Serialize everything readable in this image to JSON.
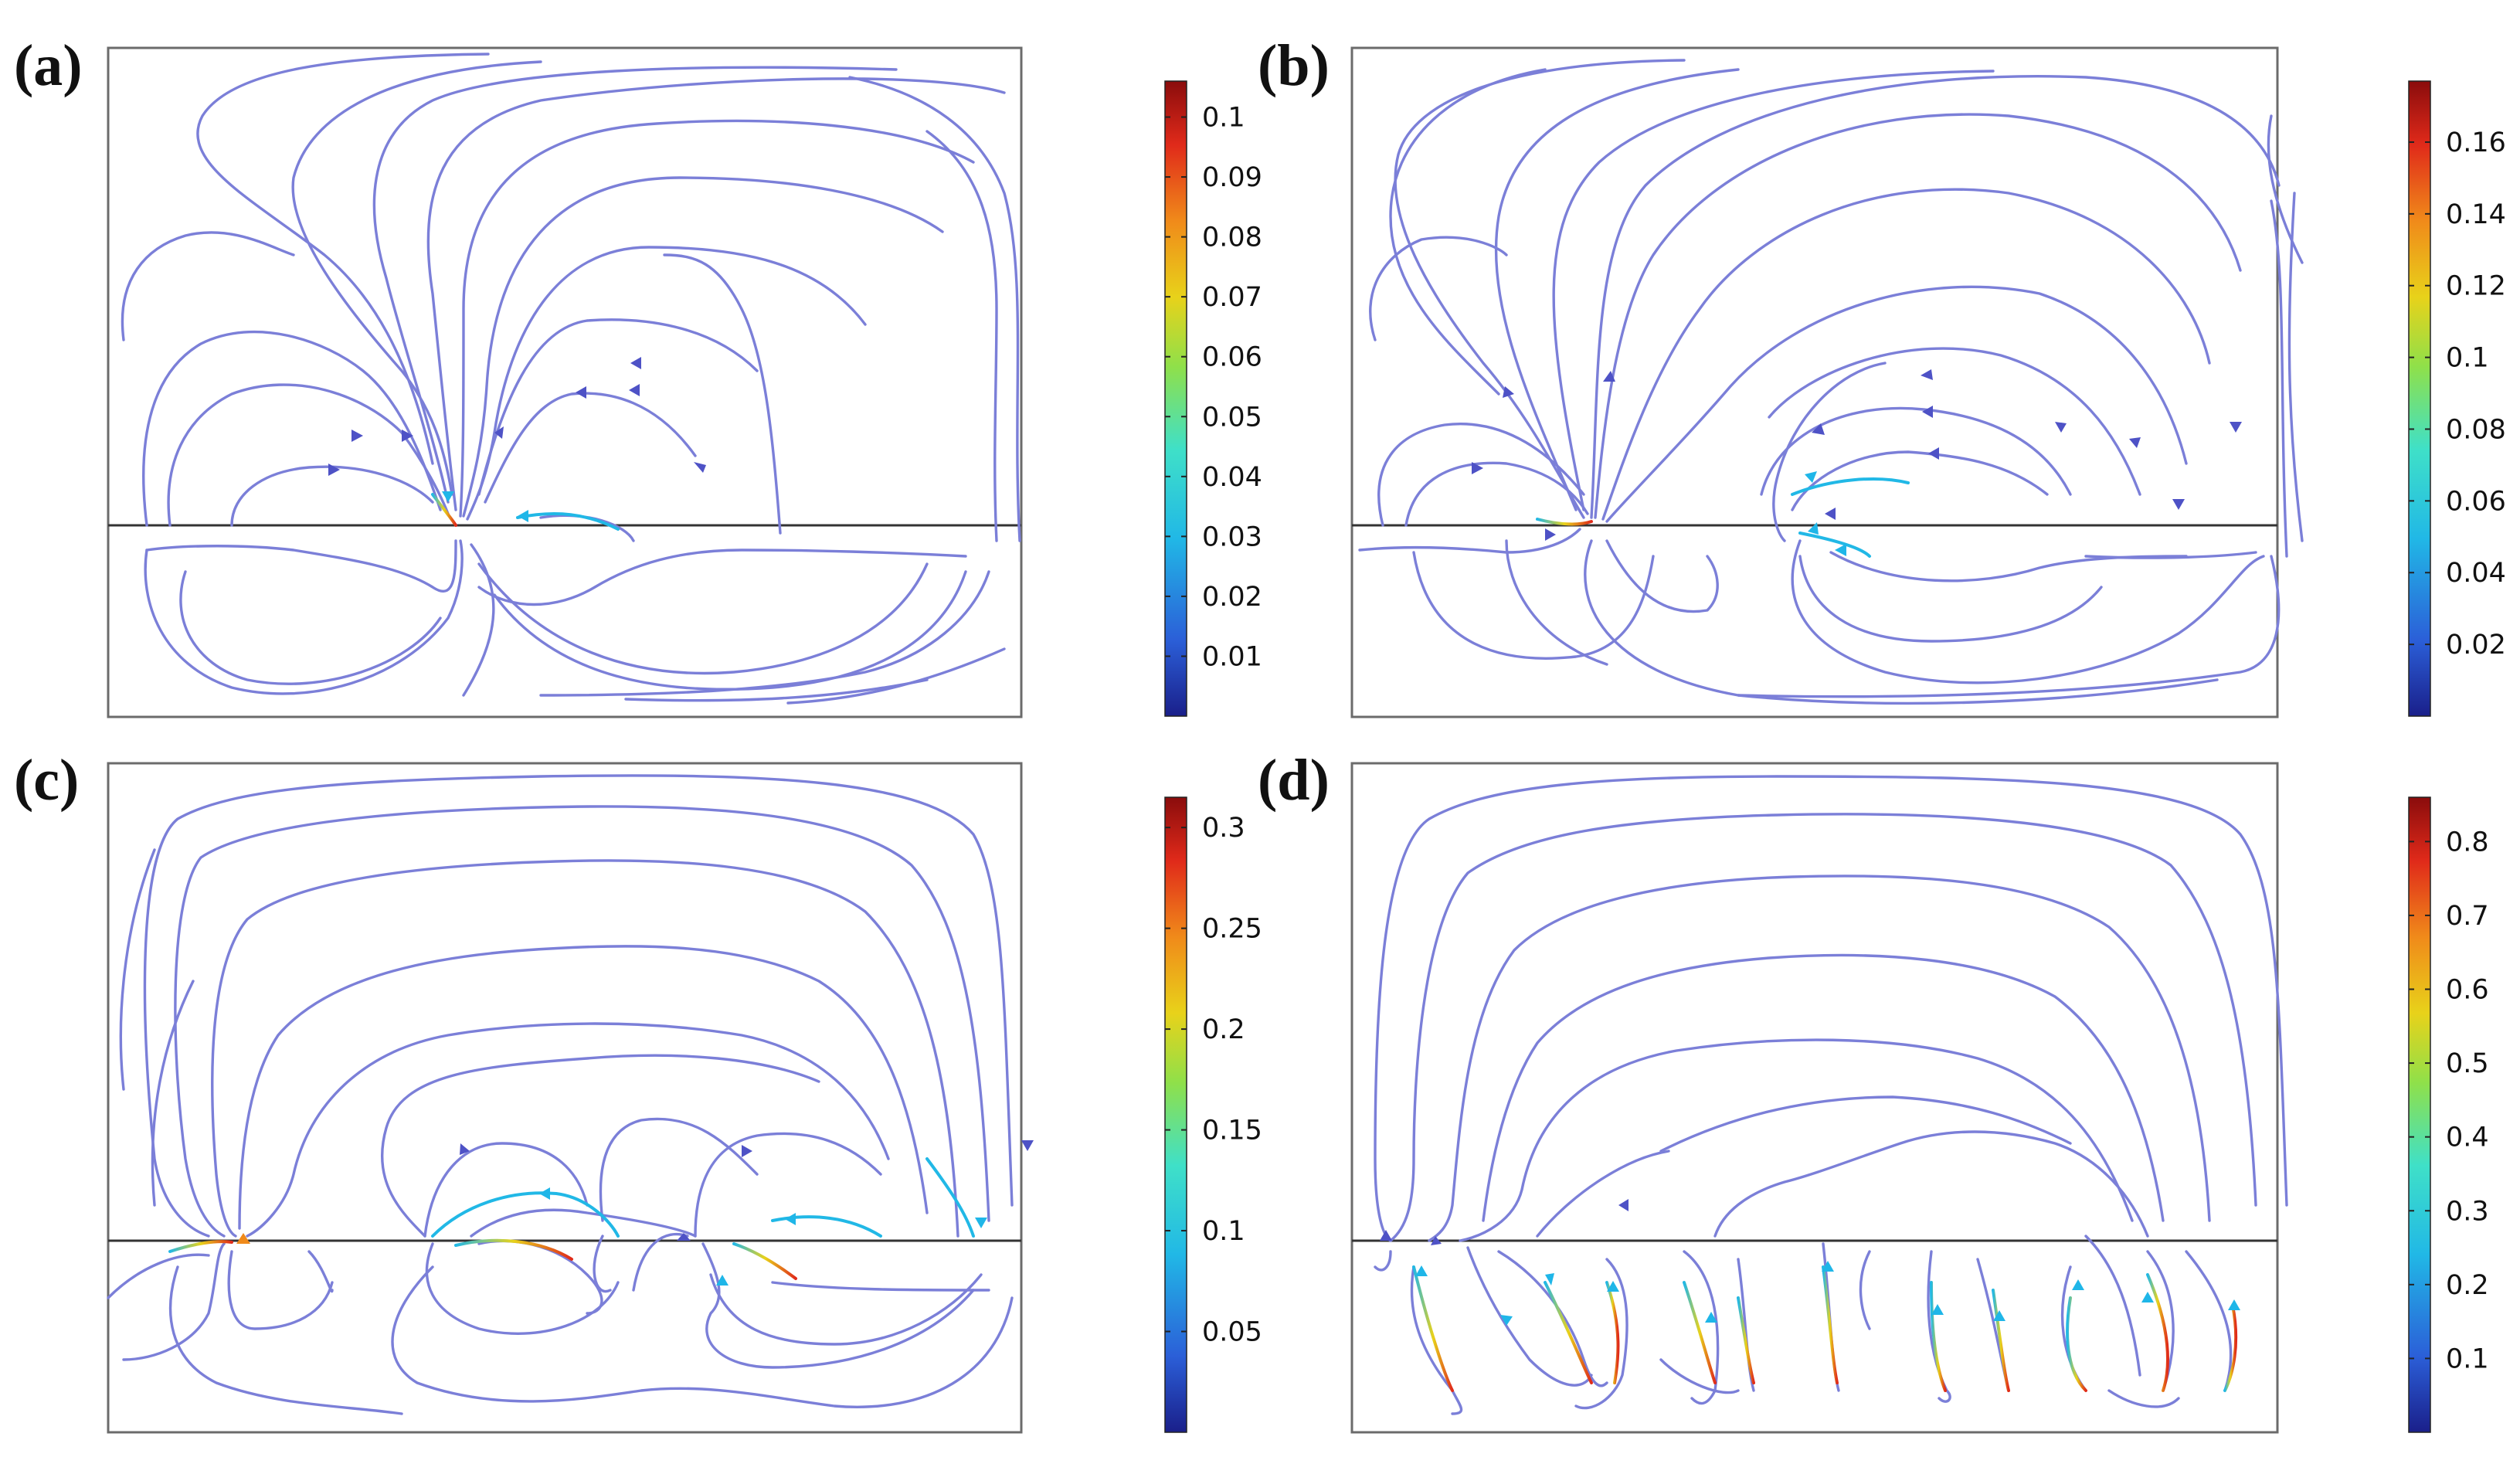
{
  "figure": {
    "panels": [
      {
        "id": "a",
        "label": "(a)",
        "colorbar": {
          "max": 0.106,
          "ticks": [
            "0.01",
            "0.02",
            "0.03",
            "0.04",
            "0.05",
            "0.06",
            "0.07",
            "0.08",
            "0.09",
            "0.1"
          ],
          "tick_values": [
            0.01,
            0.02,
            0.03,
            0.04,
            0.05,
            0.06,
            0.07,
            0.08,
            0.09,
            0.1
          ]
        }
      },
      {
        "id": "b",
        "label": "(b)",
        "colorbar": {
          "max": 0.177,
          "ticks": [
            "0.02",
            "0.04",
            "0.06",
            "0.08",
            "0.1",
            "0.12",
            "0.14",
            "0.16"
          ],
          "tick_values": [
            0.02,
            0.04,
            0.06,
            0.08,
            0.1,
            0.12,
            0.14,
            0.16
          ]
        }
      },
      {
        "id": "c",
        "label": "(c)",
        "colorbar": {
          "max": 0.315,
          "ticks": [
            "0.05",
            "0.1",
            "0.15",
            "0.2",
            "0.25",
            "0.3"
          ],
          "tick_values": [
            0.05,
            0.1,
            0.15,
            0.2,
            0.25,
            0.3
          ]
        }
      },
      {
        "id": "d",
        "label": "(d)",
        "colorbar": {
          "max": 0.86,
          "ticks": [
            "0.1",
            "0.2",
            "0.3",
            "0.4",
            "0.5",
            "0.6",
            "0.7",
            "0.8"
          ],
          "tick_values": [
            0.1,
            0.2,
            0.3,
            0.4,
            0.5,
            0.6,
            0.7,
            0.8
          ]
        }
      }
    ],
    "colormap": [
      "#1a1f8a",
      "#2b5fd8",
      "#21b8e6",
      "#3fe0c8",
      "#8fe04a",
      "#e8d21a",
      "#f08a1a",
      "#e02a1a",
      "#8a0c0c"
    ],
    "streamline_color": "#7b7fd8"
  }
}
